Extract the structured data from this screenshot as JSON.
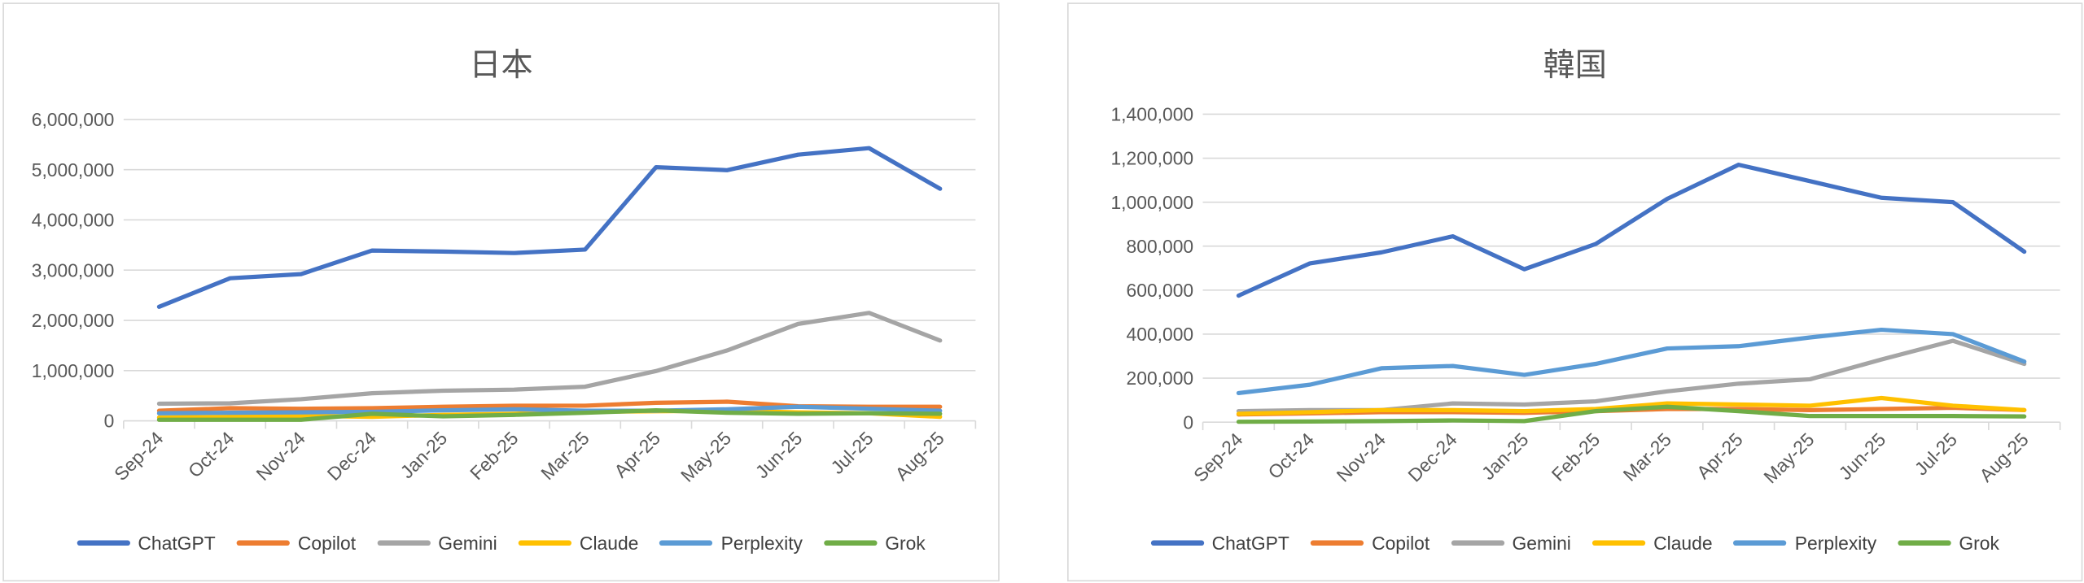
{
  "chart_data": [
    {
      "type": "line",
      "title": "日本",
      "categories": [
        "Sep-24",
        "Oct-24",
        "Nov-24",
        "Dec-24",
        "Jan-25",
        "Feb-25",
        "Mar-25",
        "Apr-25",
        "May-25",
        "Jun-25",
        "Jul-25",
        "Aug-25"
      ],
      "ylim": [
        0,
        6000000
      ],
      "yticks": [
        0,
        1000000,
        2000000,
        3000000,
        4000000,
        5000000,
        6000000
      ],
      "ytick_labels": [
        "0",
        "1,000,000",
        "2,000,000",
        "3,000,000",
        "4,000,000",
        "5,000,000",
        "6,000,000"
      ],
      "grid": true,
      "legend": "bottom",
      "series": [
        {
          "name": "ChatGPT",
          "color": "#4472C4",
          "values": [
            2270000,
            2840000,
            2920000,
            3390000,
            3370000,
            3340000,
            3410000,
            5050000,
            4990000,
            5300000,
            5430000,
            4620000
          ]
        },
        {
          "name": "Copilot",
          "color": "#ED7D31",
          "values": [
            200000,
            250000,
            240000,
            250000,
            280000,
            300000,
            300000,
            360000,
            380000,
            290000,
            280000,
            280000
          ]
        },
        {
          "name": "Gemini",
          "color": "#A5A5A5",
          "values": [
            340000,
            350000,
            430000,
            550000,
            600000,
            620000,
            680000,
            990000,
            1400000,
            1930000,
            2150000,
            1600000
          ]
        },
        {
          "name": "Claude",
          "color": "#FFC000",
          "values": [
            70000,
            80000,
            100000,
            80000,
            120000,
            140000,
            180000,
            190000,
            200000,
            170000,
            150000,
            80000
          ]
        },
        {
          "name": "Perplexity",
          "color": "#5B9BD5",
          "values": [
            150000,
            160000,
            170000,
            180000,
            210000,
            230000,
            200000,
            200000,
            230000,
            280000,
            240000,
            200000
          ]
        },
        {
          "name": "Grok",
          "color": "#70AD47",
          "values": [
            20000,
            20000,
            20000,
            140000,
            90000,
            120000,
            160000,
            210000,
            160000,
            140000,
            150000,
            140000
          ]
        }
      ]
    },
    {
      "type": "line",
      "title": "韓国",
      "categories": [
        "Sep-24",
        "Oct-24",
        "Nov-24",
        "Dec-24",
        "Jan-25",
        "Feb-25",
        "Mar-25",
        "Apr-25",
        "May-25",
        "Jun-25",
        "Jul-25",
        "Aug-25"
      ],
      "ylim": [
        0,
        1400000
      ],
      "yticks": [
        0,
        200000,
        400000,
        600000,
        800000,
        1000000,
        1200000,
        1400000
      ],
      "ytick_labels": [
        "0",
        "200,000",
        "400,000",
        "600,000",
        "800,000",
        "1,000,000",
        "1,200,000",
        "1,400,000"
      ],
      "grid": true,
      "legend": "bottom",
      "series": [
        {
          "name": "ChatGPT",
          "color": "#4472C4",
          "values": [
            575000,
            722000,
            772000,
            845000,
            695000,
            810000,
            1015000,
            1170000,
            1095000,
            1020000,
            1000000,
            775000
          ]
        },
        {
          "name": "Copilot",
          "color": "#ED7D31",
          "values": [
            35000,
            40000,
            45000,
            45000,
            42000,
            50000,
            60000,
            60000,
            55000,
            60000,
            65000,
            55000
          ]
        },
        {
          "name": "Gemini",
          "color": "#A5A5A5",
          "values": [
            50000,
            55000,
            55000,
            85000,
            80000,
            95000,
            140000,
            175000,
            195000,
            285000,
            370000,
            265000
          ]
        },
        {
          "name": "Claude",
          "color": "#FFC000",
          "values": [
            38000,
            45000,
            55000,
            55000,
            50000,
            60000,
            85000,
            80000,
            75000,
            110000,
            75000,
            55000
          ]
        },
        {
          "name": "Perplexity",
          "color": "#5B9BD5",
          "values": [
            132000,
            170000,
            245000,
            255000,
            215000,
            265000,
            335000,
            345000,
            385000,
            420000,
            400000,
            275000
          ]
        },
        {
          "name": "Grok",
          "color": "#70AD47",
          "values": [
            2000,
            3000,
            5000,
            8000,
            5000,
            50000,
            70000,
            50000,
            28000,
            28000,
            28000,
            26000
          ]
        }
      ]
    }
  ]
}
